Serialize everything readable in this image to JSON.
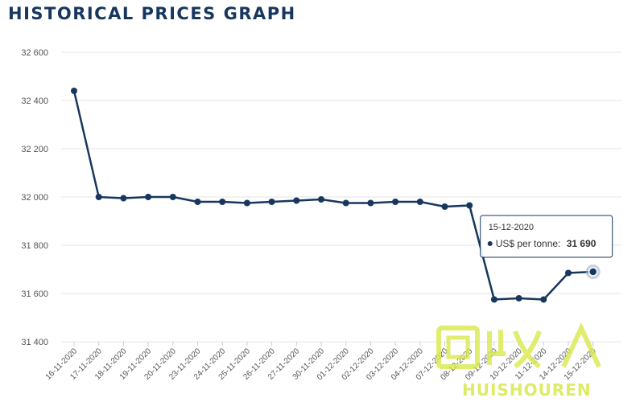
{
  "page": {
    "title": "HISTORICAL PRICES GRAPH"
  },
  "chart_data": {
    "type": "line",
    "title": "HISTORICAL PRICES GRAPH",
    "xlabel": "",
    "ylabel": "",
    "ylim": [
      31400,
      32600
    ],
    "yticks": [
      "32 600",
      "32 400",
      "32 200",
      "32 000",
      "31 800",
      "31 600",
      "31 400"
    ],
    "ytick_values": [
      32600,
      32400,
      32200,
      32000,
      31800,
      31600,
      31400
    ],
    "grid": true,
    "categories": [
      "16-11-2020",
      "17-11-2020",
      "18-11-2020",
      "19-11-2020",
      "20-11-2020",
      "23-11-2020",
      "24-11-2020",
      "25-11-2020",
      "26-11-2020",
      "27-11-2020",
      "30-11-2020",
      "01-12-2020",
      "02-12-2020",
      "03-12-2020",
      "04-12-2020",
      "07-12-2020",
      "08-12-2020",
      "09-12-2020",
      "10-12-2020",
      "11-12-2020",
      "14-12-2020",
      "15-12-2020"
    ],
    "series": [
      {
        "name": "US$ per tonne",
        "color": "#17375e",
        "values": [
          32440,
          32000,
          31995,
          32000,
          32000,
          31980,
          31980,
          31975,
          31980,
          31985,
          31990,
          31975,
          31975,
          31980,
          31980,
          31960,
          31965,
          31575,
          31580,
          31575,
          31685,
          31690
        ]
      }
    ],
    "tooltip": {
      "date": "15-12-2020",
      "label": "US$ per tonne:",
      "value": "31 690"
    }
  },
  "watermark": {
    "text": "HUISHOUREN",
    "logo_text": "回收"
  },
  "colors": {
    "line": "#17375e",
    "grid": "#e6e6e6",
    "title": "#17375e",
    "watermark": "#d9e84a"
  }
}
